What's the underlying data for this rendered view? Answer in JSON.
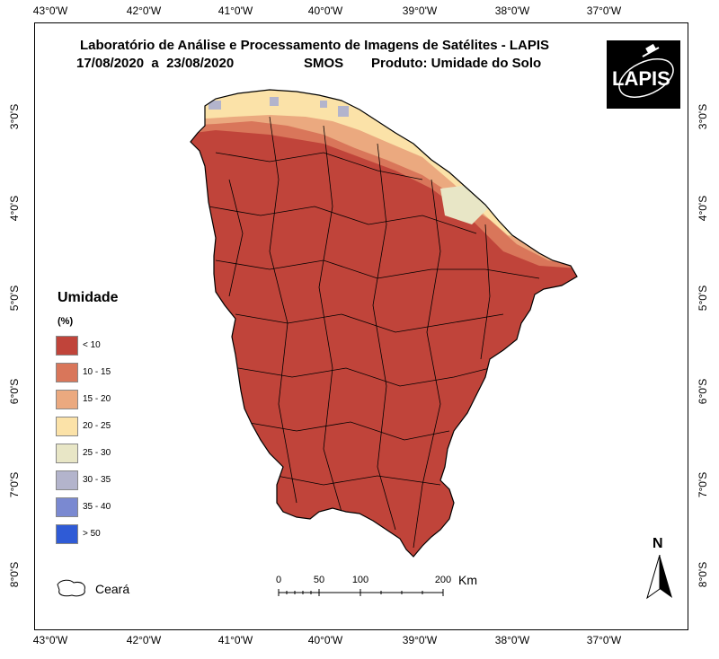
{
  "title": {
    "line1": "Laboratório de Análise e Processamento de Imagens de Satélites - LAPIS",
    "dates": "17/08/2020  a  23/08/2020",
    "sensor": "SMOS",
    "product": "Produto: Umidade do Solo"
  },
  "logo": {
    "text": "LAPIS"
  },
  "axes": {
    "top": [
      "43°0'W",
      "42°0'W",
      "41°0'W",
      "40°0'W",
      "39°0'W",
      "38°0'W",
      "37°0'W"
    ],
    "bottom": [
      "43°0'W",
      "42°0'W",
      "41°0'W",
      "40°0'W",
      "39°0'W",
      "38°0'W",
      "37°0'W"
    ],
    "left": [
      "3°0'S",
      "4°0'S",
      "5°0'S",
      "6°0'S",
      "7°0'S",
      "8°0'S"
    ],
    "right": [
      "3°0'S",
      "4°0'S",
      "5°0'S",
      "6°0'S",
      "7°0'S",
      "8°0'S"
    ]
  },
  "legend": {
    "title": "Umidade",
    "unit": "(%)",
    "items": [
      {
        "label": "< 10",
        "color": "#c0443a"
      },
      {
        "label": "10 - 15",
        "color": "#d9765a"
      },
      {
        "label": "15 - 20",
        "color": "#eba97f"
      },
      {
        "label": "20 - 25",
        "color": "#fbe2a8"
      },
      {
        "label": "25 - 30",
        "color": "#e8e6c6"
      },
      {
        "label": "30 - 35",
        "color": "#b3b4cc"
      },
      {
        "label": "35 - 40",
        "color": "#7a89d1"
      },
      {
        "label": "> 50",
        "color": "#2f5bd6"
      }
    ],
    "state_label": "Ceará"
  },
  "scale": {
    "ticks": [
      "0",
      "50",
      "100",
      "200"
    ],
    "unit": "Km"
  },
  "north": "N"
}
